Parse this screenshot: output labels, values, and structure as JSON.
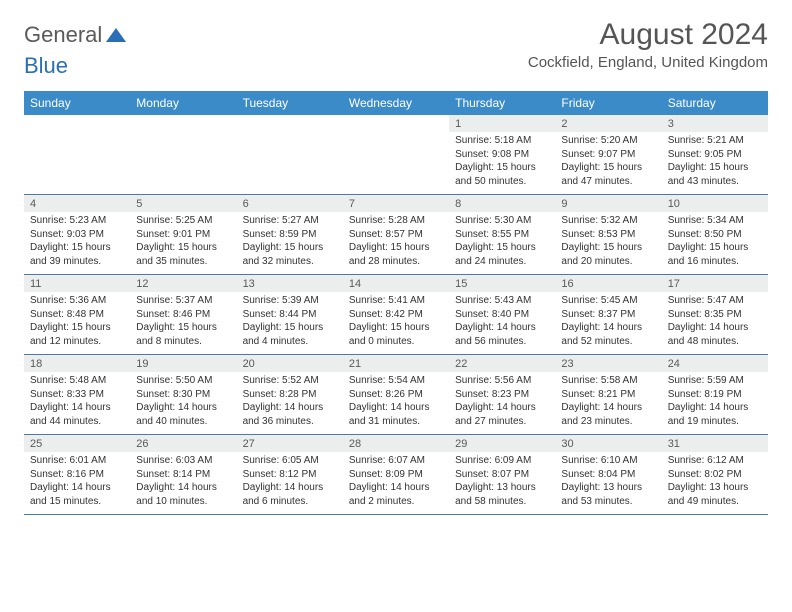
{
  "logo": {
    "part1": "General",
    "part2": "Blue"
  },
  "title": "August 2024",
  "location": "Cockfield, England, United Kingdom",
  "colors": {
    "header_bg": "#3b8bc9",
    "header_text": "#ffffff",
    "daynum_bg": "#eceded",
    "cell_border": "#4a7ba8",
    "logo_blue": "#2a6fb5",
    "logo_gray": "#5a5a5a",
    "body_text": "#333333"
  },
  "weekdays": [
    "Sunday",
    "Monday",
    "Tuesday",
    "Wednesday",
    "Thursday",
    "Friday",
    "Saturday"
  ],
  "weeks": [
    {
      "days": [
        null,
        null,
        null,
        null,
        {
          "n": "1",
          "sunrise": "5:18 AM",
          "sunset": "9:08 PM",
          "daylight": "15 hours and 50 minutes."
        },
        {
          "n": "2",
          "sunrise": "5:20 AM",
          "sunset": "9:07 PM",
          "daylight": "15 hours and 47 minutes."
        },
        {
          "n": "3",
          "sunrise": "5:21 AM",
          "sunset": "9:05 PM",
          "daylight": "15 hours and 43 minutes."
        }
      ]
    },
    {
      "days": [
        {
          "n": "4",
          "sunrise": "5:23 AM",
          "sunset": "9:03 PM",
          "daylight": "15 hours and 39 minutes."
        },
        {
          "n": "5",
          "sunrise": "5:25 AM",
          "sunset": "9:01 PM",
          "daylight": "15 hours and 35 minutes."
        },
        {
          "n": "6",
          "sunrise": "5:27 AM",
          "sunset": "8:59 PM",
          "daylight": "15 hours and 32 minutes."
        },
        {
          "n": "7",
          "sunrise": "5:28 AM",
          "sunset": "8:57 PM",
          "daylight": "15 hours and 28 minutes."
        },
        {
          "n": "8",
          "sunrise": "5:30 AM",
          "sunset": "8:55 PM",
          "daylight": "15 hours and 24 minutes."
        },
        {
          "n": "9",
          "sunrise": "5:32 AM",
          "sunset": "8:53 PM",
          "daylight": "15 hours and 20 minutes."
        },
        {
          "n": "10",
          "sunrise": "5:34 AM",
          "sunset": "8:50 PM",
          "daylight": "15 hours and 16 minutes."
        }
      ]
    },
    {
      "days": [
        {
          "n": "11",
          "sunrise": "5:36 AM",
          "sunset": "8:48 PM",
          "daylight": "15 hours and 12 minutes."
        },
        {
          "n": "12",
          "sunrise": "5:37 AM",
          "sunset": "8:46 PM",
          "daylight": "15 hours and 8 minutes."
        },
        {
          "n": "13",
          "sunrise": "5:39 AM",
          "sunset": "8:44 PM",
          "daylight": "15 hours and 4 minutes."
        },
        {
          "n": "14",
          "sunrise": "5:41 AM",
          "sunset": "8:42 PM",
          "daylight": "15 hours and 0 minutes."
        },
        {
          "n": "15",
          "sunrise": "5:43 AM",
          "sunset": "8:40 PM",
          "daylight": "14 hours and 56 minutes."
        },
        {
          "n": "16",
          "sunrise": "5:45 AM",
          "sunset": "8:37 PM",
          "daylight": "14 hours and 52 minutes."
        },
        {
          "n": "17",
          "sunrise": "5:47 AM",
          "sunset": "8:35 PM",
          "daylight": "14 hours and 48 minutes."
        }
      ]
    },
    {
      "days": [
        {
          "n": "18",
          "sunrise": "5:48 AM",
          "sunset": "8:33 PM",
          "daylight": "14 hours and 44 minutes."
        },
        {
          "n": "19",
          "sunrise": "5:50 AM",
          "sunset": "8:30 PM",
          "daylight": "14 hours and 40 minutes."
        },
        {
          "n": "20",
          "sunrise": "5:52 AM",
          "sunset": "8:28 PM",
          "daylight": "14 hours and 36 minutes."
        },
        {
          "n": "21",
          "sunrise": "5:54 AM",
          "sunset": "8:26 PM",
          "daylight": "14 hours and 31 minutes."
        },
        {
          "n": "22",
          "sunrise": "5:56 AM",
          "sunset": "8:23 PM",
          "daylight": "14 hours and 27 minutes."
        },
        {
          "n": "23",
          "sunrise": "5:58 AM",
          "sunset": "8:21 PM",
          "daylight": "14 hours and 23 minutes."
        },
        {
          "n": "24",
          "sunrise": "5:59 AM",
          "sunset": "8:19 PM",
          "daylight": "14 hours and 19 minutes."
        }
      ]
    },
    {
      "days": [
        {
          "n": "25",
          "sunrise": "6:01 AM",
          "sunset": "8:16 PM",
          "daylight": "14 hours and 15 minutes."
        },
        {
          "n": "26",
          "sunrise": "6:03 AM",
          "sunset": "8:14 PM",
          "daylight": "14 hours and 10 minutes."
        },
        {
          "n": "27",
          "sunrise": "6:05 AM",
          "sunset": "8:12 PM",
          "daylight": "14 hours and 6 minutes."
        },
        {
          "n": "28",
          "sunrise": "6:07 AM",
          "sunset": "8:09 PM",
          "daylight": "14 hours and 2 minutes."
        },
        {
          "n": "29",
          "sunrise": "6:09 AM",
          "sunset": "8:07 PM",
          "daylight": "13 hours and 58 minutes."
        },
        {
          "n": "30",
          "sunrise": "6:10 AM",
          "sunset": "8:04 PM",
          "daylight": "13 hours and 53 minutes."
        },
        {
          "n": "31",
          "sunrise": "6:12 AM",
          "sunset": "8:02 PM",
          "daylight": "13 hours and 49 minutes."
        }
      ]
    }
  ],
  "labels": {
    "sunrise": "Sunrise:",
    "sunset": "Sunset:",
    "daylight": "Daylight:"
  }
}
